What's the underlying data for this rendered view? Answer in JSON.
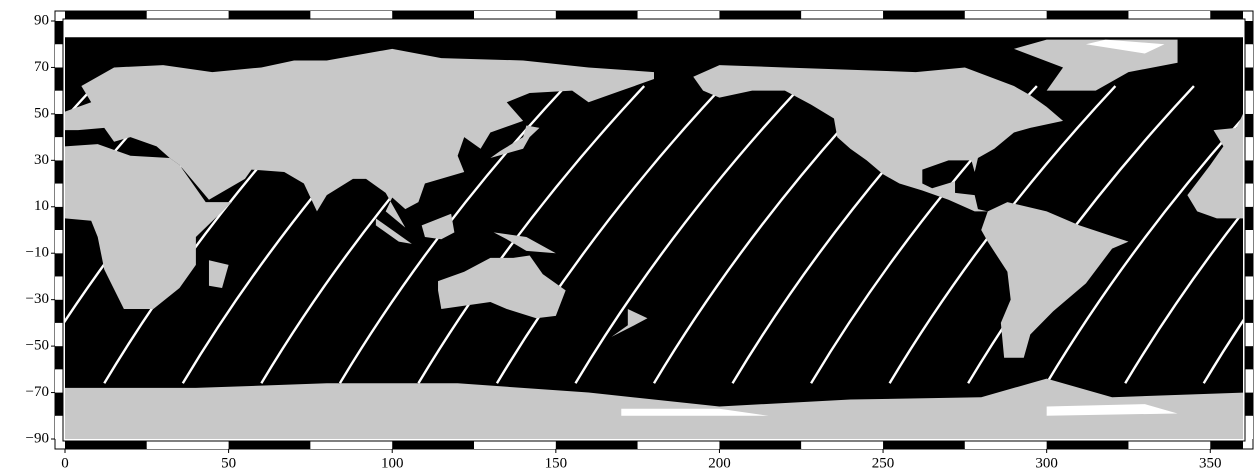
{
  "chart_data": {
    "type": "map",
    "xlim": [
      0,
      360
    ],
    "ylim": [
      -90,
      90
    ],
    "xticks": [
      0,
      50,
      100,
      150,
      200,
      250,
      300,
      350
    ],
    "yticks": [
      90,
      70,
      50,
      30,
      10,
      {
        "value": -10,
        "label": "−10"
      },
      {
        "value": -30,
        "label": "−30"
      },
      {
        "value": -50,
        "label": "−50"
      },
      {
        "value": -70,
        "label": "−70"
      },
      {
        "value": -90,
        "label": "−90"
      }
    ]
  }
}
